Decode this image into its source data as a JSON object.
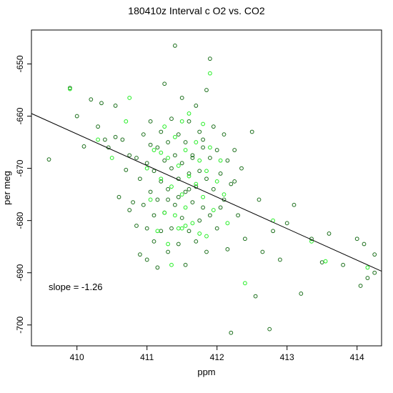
{
  "chart_data": {
    "type": "scatter",
    "title": "180410z   Interval c O2 vs. CO2",
    "xlabel": "ppm",
    "ylabel": "per meg",
    "xlim": [
      409.35,
      414.35
    ],
    "ylim": [
      -704,
      -643.5
    ],
    "x_ticks": [
      410,
      411,
      412,
      413,
      414
    ],
    "y_ticks": [
      -650,
      -660,
      -670,
      -680,
      -690,
      -700
    ],
    "grid": false,
    "legend": "none",
    "annotation": "slope =  -1.26",
    "regression_line": {
      "slope": -1.26,
      "x": [
        409.35,
        414.35
      ],
      "y": [
        -659.5,
        -689.7
      ]
    },
    "colors": {
      "series_a": "#1a6e1a",
      "series_b": "#22ee22",
      "line": "#000000",
      "axes": "#000000"
    },
    "series": [
      {
        "values": [
          [
            409.6,
            -668.3
          ],
          [
            409.9,
            -654.6
          ],
          [
            410.0,
            -660.0
          ],
          [
            410.1,
            -665.8
          ],
          [
            410.2,
            -656.8
          ],
          [
            410.3,
            -662.0
          ],
          [
            410.35,
            -657.5
          ],
          [
            410.4,
            -664.5
          ],
          [
            410.45,
            -666.0
          ],
          [
            410.55,
            -658.0
          ],
          [
            410.6,
            -675.5
          ],
          [
            410.65,
            -664.5
          ],
          [
            410.7,
            -670.3
          ],
          [
            410.75,
            -678.0
          ],
          [
            410.8,
            -676.5
          ],
          [
            410.85,
            -668.0
          ],
          [
            410.85,
            -681.0
          ],
          [
            410.9,
            -672.0
          ],
          [
            410.9,
            -686.5
          ],
          [
            410.95,
            -663.5
          ],
          [
            410.95,
            -677.0
          ],
          [
            411.0,
            -669.0
          ],
          [
            411.0,
            -681.5
          ],
          [
            411.0,
            -687.5
          ],
          [
            411.05,
            -661.0
          ],
          [
            411.05,
            -674.5
          ],
          [
            411.1,
            -670.5
          ],
          [
            411.1,
            -679.0
          ],
          [
            411.1,
            -684.0
          ],
          [
            411.15,
            -666.0
          ],
          [
            411.15,
            -676.0
          ],
          [
            411.15,
            -689.0
          ],
          [
            411.2,
            -663.0
          ],
          [
            411.2,
            -672.5
          ],
          [
            411.2,
            -682.0
          ],
          [
            411.25,
            -653.8
          ],
          [
            411.25,
            -668.5
          ],
          [
            411.25,
            -678.5
          ],
          [
            411.3,
            -665.0
          ],
          [
            411.3,
            -674.0
          ],
          [
            411.3,
            -686.0
          ],
          [
            411.35,
            -660.5
          ],
          [
            411.35,
            -670.0
          ],
          [
            411.35,
            -681.5
          ],
          [
            411.4,
            -646.5
          ],
          [
            411.4,
            -667.5
          ],
          [
            411.4,
            -677.0
          ],
          [
            411.45,
            -663.5
          ],
          [
            411.45,
            -672.0
          ],
          [
            411.45,
            -684.5
          ],
          [
            411.5,
            -656.5
          ],
          [
            411.5,
            -669.0
          ],
          [
            411.5,
            -679.5
          ],
          [
            411.55,
            -665.0
          ],
          [
            411.55,
            -674.5
          ],
          [
            411.55,
            -688.5
          ],
          [
            411.6,
            -661.0
          ],
          [
            411.6,
            -671.0
          ],
          [
            411.6,
            -682.0
          ],
          [
            411.65,
            -667.5
          ],
          [
            411.65,
            -676.5
          ],
          [
            411.7,
            -658.0
          ],
          [
            411.7,
            -673.5
          ],
          [
            411.7,
            -684.0
          ],
          [
            411.75,
            -663.0
          ],
          [
            411.75,
            -670.5
          ],
          [
            411.75,
            -680.0
          ],
          [
            411.8,
            -666.0
          ],
          [
            411.8,
            -677.5
          ],
          [
            411.85,
            -655.0
          ],
          [
            411.85,
            -672.0
          ],
          [
            411.85,
            -686.0
          ],
          [
            411.9,
            -649.0
          ],
          [
            411.9,
            -668.0
          ],
          [
            411.9,
            -679.0
          ],
          [
            411.95,
            -662.0
          ],
          [
            411.95,
            -674.0
          ],
          [
            412.0,
            -666.5
          ],
          [
            412.0,
            -681.5
          ],
          [
            412.05,
            -671.0
          ],
          [
            412.1,
            -663.5
          ],
          [
            412.1,
            -676.0
          ],
          [
            412.15,
            -668.5
          ],
          [
            412.15,
            -685.5
          ],
          [
            412.2,
            -673.0
          ],
          [
            412.25,
            -666.5
          ],
          [
            412.3,
            -679.0
          ],
          [
            412.35,
            -670.0
          ],
          [
            412.4,
            -683.5
          ],
          [
            412.5,
            -663.0
          ],
          [
            412.55,
            -694.5
          ],
          [
            412.6,
            -676.0
          ],
          [
            412.65,
            -686.0
          ],
          [
            412.75,
            -700.8
          ],
          [
            412.8,
            -682.0
          ],
          [
            412.9,
            -687.5
          ],
          [
            413.0,
            -680.5
          ],
          [
            413.1,
            -677.0
          ],
          [
            413.2,
            -694.0
          ],
          [
            413.35,
            -683.5
          ],
          [
            413.5,
            -688.0
          ],
          [
            413.6,
            -682.5
          ],
          [
            413.8,
            -688.5
          ],
          [
            414.0,
            -683.5
          ],
          [
            414.05,
            -692.5
          ],
          [
            414.1,
            -684.5
          ],
          [
            414.15,
            -691.0
          ],
          [
            414.25,
            -690.0
          ],
          [
            414.25,
            -686.5
          ],
          [
            412.2,
            -701.5
          ],
          [
            410.55,
            -664.0
          ],
          [
            410.75,
            -667.5
          ],
          [
            411.05,
            -665.5
          ],
          [
            411.3,
            -676.0
          ],
          [
            411.6,
            -674.0
          ],
          [
            411.8,
            -664.5
          ],
          [
            412.05,
            -677.5
          ],
          [
            412.25,
            -672.5
          ],
          [
            411.45,
            -675.5
          ],
          [
            411.65,
            -668.0
          ]
        ]
      },
      {
        "values": [
          [
            409.9,
            -654.8
          ],
          [
            410.3,
            -664.5
          ],
          [
            410.5,
            -668.0
          ],
          [
            410.7,
            -661.0
          ],
          [
            410.75,
            -656.5
          ],
          [
            411.0,
            -670.0
          ],
          [
            411.05,
            -676.0
          ],
          [
            411.1,
            -666.5
          ],
          [
            411.15,
            -682.0
          ],
          [
            411.2,
            -672.0
          ],
          [
            411.25,
            -662.0
          ],
          [
            411.25,
            -678.5
          ],
          [
            411.3,
            -668.0
          ],
          [
            411.3,
            -684.5
          ],
          [
            411.35,
            -673.5
          ],
          [
            411.4,
            -664.0
          ],
          [
            411.4,
            -679.0
          ],
          [
            411.45,
            -669.5
          ],
          [
            411.45,
            -681.5
          ],
          [
            411.5,
            -661.0
          ],
          [
            411.5,
            -675.0
          ],
          [
            411.55,
            -666.5
          ],
          [
            411.55,
            -677.5
          ],
          [
            411.6,
            -659.5
          ],
          [
            411.6,
            -671.5
          ],
          [
            411.65,
            -680.5
          ],
          [
            411.7,
            -665.0
          ],
          [
            411.7,
            -673.0
          ],
          [
            411.75,
            -668.5
          ],
          [
            411.75,
            -682.5
          ],
          [
            411.8,
            -661.5
          ],
          [
            411.8,
            -675.5
          ],
          [
            411.85,
            -670.5
          ],
          [
            411.9,
            -651.8
          ],
          [
            411.9,
            -666.0
          ],
          [
            411.95,
            -678.0
          ],
          [
            412.0,
            -672.5
          ],
          [
            412.05,
            -668.5
          ],
          [
            412.1,
            -675.0
          ],
          [
            412.15,
            -680.5
          ],
          [
            412.4,
            -692.0
          ],
          [
            412.8,
            -680.0
          ],
          [
            413.35,
            -684.0
          ],
          [
            413.55,
            -687.8
          ],
          [
            414.15,
            -689.0
          ],
          [
            411.35,
            -688.5
          ],
          [
            411.55,
            -681.0
          ],
          [
            411.5,
            -681.5
          ],
          [
            411.85,
            -683.0
          ],
          [
            411.2,
            -667.0
          ]
        ]
      }
    ]
  }
}
